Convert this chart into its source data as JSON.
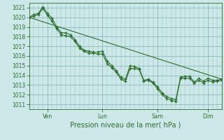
{
  "background_color": "#cce8e8",
  "grid_color": "#8ab8b8",
  "line_color": "#2d6e2d",
  "ylabel_ticks": [
    1011,
    1012,
    1013,
    1014,
    1015,
    1016,
    1017,
    1018,
    1019,
    1020,
    1021
  ],
  "ylim": [
    1010.5,
    1021.5
  ],
  "xlabel": "Pression niveau de la mer( hPa )",
  "x_tick_labels": [
    "Ven",
    "Lun",
    "Sam",
    "Dim"
  ],
  "x_tick_positions": [
    8,
    32,
    56,
    78
  ],
  "x_minor_step": 2,
  "xlim": [
    0,
    84
  ],
  "series1_x": [
    0,
    2,
    4,
    6,
    8,
    10,
    12,
    14,
    16,
    18,
    20,
    22,
    24,
    26,
    28,
    30,
    32,
    34,
    36,
    38,
    40,
    42,
    44,
    46,
    48,
    50,
    52,
    54,
    56,
    58,
    60,
    62,
    64,
    66,
    68,
    70,
    72,
    74,
    76,
    78,
    80,
    82,
    84
  ],
  "series1_y": [
    1020.0,
    1020.3,
    1020.4,
    1021.1,
    1020.4,
    1019.9,
    1019.0,
    1018.4,
    1018.4,
    1018.2,
    1017.7,
    1017.0,
    1016.6,
    1016.5,
    1016.4,
    1016.4,
    1016.5,
    1015.5,
    1015.0,
    1014.5,
    1013.8,
    1013.6,
    1015.0,
    1014.9,
    1014.7,
    1013.5,
    1013.6,
    1013.3,
    1012.8,
    1012.2,
    1011.8,
    1011.6,
    1011.5,
    1013.8,
    1013.9,
    1013.9,
    1013.3,
    1013.7,
    1013.4,
    1013.7,
    1013.5,
    1013.5,
    1013.6
  ],
  "series2_x": [
    0,
    2,
    4,
    6,
    8,
    10,
    12,
    14,
    16,
    18,
    20,
    22,
    24,
    26,
    28,
    30,
    32,
    34,
    36,
    38,
    40,
    42,
    44,
    46,
    48,
    50,
    52,
    54,
    56,
    58,
    60,
    62,
    64,
    66,
    68,
    70,
    72,
    74,
    76,
    78,
    80,
    82,
    84
  ],
  "series2_y": [
    1020.0,
    1020.1,
    1020.3,
    1020.9,
    1020.2,
    1019.6,
    1018.8,
    1018.2,
    1018.1,
    1018.0,
    1017.5,
    1016.8,
    1016.5,
    1016.3,
    1016.3,
    1016.2,
    1016.2,
    1015.2,
    1014.8,
    1014.3,
    1013.6,
    1013.4,
    1014.7,
    1014.7,
    1014.6,
    1013.4,
    1013.5,
    1013.2,
    1012.6,
    1012.0,
    1011.6,
    1011.4,
    1011.3,
    1013.7,
    1013.7,
    1013.7,
    1013.2,
    1013.5,
    1013.2,
    1013.5,
    1013.3,
    1013.4,
    1013.5
  ],
  "trend_x": [
    0,
    84
  ],
  "trend_y": [
    1020.0,
    1013.6
  ]
}
